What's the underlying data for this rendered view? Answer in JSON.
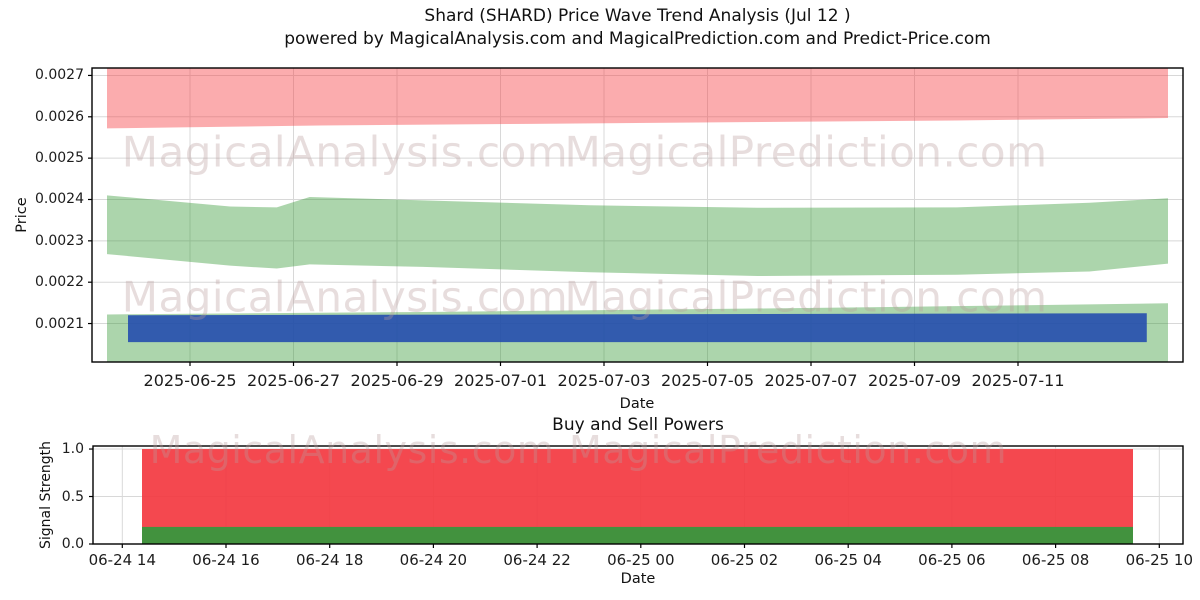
{
  "figure": {
    "background": "#ffffff",
    "grid_color": "#d8d8d8",
    "watermark_texts": [
      "MagicalAnalysis.com",
      "MagicalPrediction.com"
    ]
  },
  "chart_data": [
    {
      "type": "area",
      "title": "Shard (SHARD) Price Wave Trend Analysis (Jul 12 )",
      "subtitle": "powered by MagicalAnalysis.com and MagicalPrediction.com and Predict-Price.com",
      "xlabel": "Date",
      "ylabel": "Price",
      "grid": true,
      "legend": "none",
      "ylim": [
        0.002007,
        0.002718
      ],
      "x_tick_labels": [
        "2025-06-25",
        "2025-06-27",
        "2025-06-29",
        "2025-07-01",
        "2025-07-03",
        "2025-07-05",
        "2025-07-07",
        "2025-07-09",
        "2025-07-11"
      ],
      "y_tick_labels": [
        "0.0021",
        "0.0022",
        "0.0023",
        "0.0024",
        "0.0025",
        "0.0026",
        "0.0027"
      ],
      "series": [
        {
          "name": "resistance-band",
          "kind": "band",
          "color": "#f6464c",
          "opacity": 0.45,
          "x_frac": [
            0,
            0.2,
            0.4,
            0.6,
            0.8,
            1
          ],
          "upper": [
            0.002718,
            0.002718,
            0.002718,
            0.002718,
            0.002718,
            0.002718
          ],
          "lower": [
            0.002572,
            0.002579,
            0.002583,
            0.002587,
            0.002591,
            0.002597
          ]
        },
        {
          "name": "trend-band",
          "kind": "band",
          "color": "#3a9a3a",
          "opacity": 0.42,
          "x_frac": [
            0,
            0.116,
            0.16,
            0.191,
            0.298,
            0.455,
            0.613,
            0.801,
            0.926,
            1
          ],
          "upper": [
            0.00241,
            0.002383,
            0.002381,
            0.002406,
            0.002398,
            0.002386,
            0.00238,
            0.002381,
            0.002392,
            0.002403
          ],
          "lower": [
            0.002268,
            0.00224,
            0.002233,
            0.002243,
            0.002237,
            0.002224,
            0.002215,
            0.002218,
            0.002226,
            0.002245
          ]
        },
        {
          "name": "support-band",
          "kind": "band",
          "color": "#3a9a3a",
          "opacity": 0.42,
          "x_frac": [
            0,
            0.3,
            0.6,
            0.8,
            1
          ],
          "upper": [
            0.002122,
            0.002128,
            0.002136,
            0.002142,
            0.002149
          ],
          "lower": [
            0.002007,
            0.002007,
            0.002007,
            0.002007,
            0.002007
          ]
        },
        {
          "name": "signal-bar",
          "kind": "band",
          "color": "#214aae",
          "opacity": 0.88,
          "x_frac": [
            0.0198,
            0.98
          ],
          "upper": [
            0.00212,
            0.002125
          ],
          "lower": [
            0.002055,
            0.002055
          ]
        }
      ]
    },
    {
      "type": "bar",
      "title": "Buy and Sell Powers",
      "xlabel": "Date",
      "ylabel": "Signal Strength",
      "grid": true,
      "legend": "none",
      "ylim": [
        0,
        1.032
      ],
      "x_tick_labels": [
        "06-24 14",
        "06-24 16",
        "06-24 18",
        "06-24 20",
        "06-24 22",
        "06-25 00",
        "06-25 02",
        "06-25 04",
        "06-25 06",
        "06-25 08",
        "06-25 10"
      ],
      "y_tick_labels": [
        "0.0",
        "0.5",
        "1.0"
      ],
      "series": [
        {
          "name": "sell-power",
          "color": "#f33840",
          "opacity": 0.92,
          "value": 1.0
        },
        {
          "name": "buy-power",
          "color": "#38973d",
          "opacity": 0.95,
          "value": 0.18
        }
      ]
    }
  ]
}
